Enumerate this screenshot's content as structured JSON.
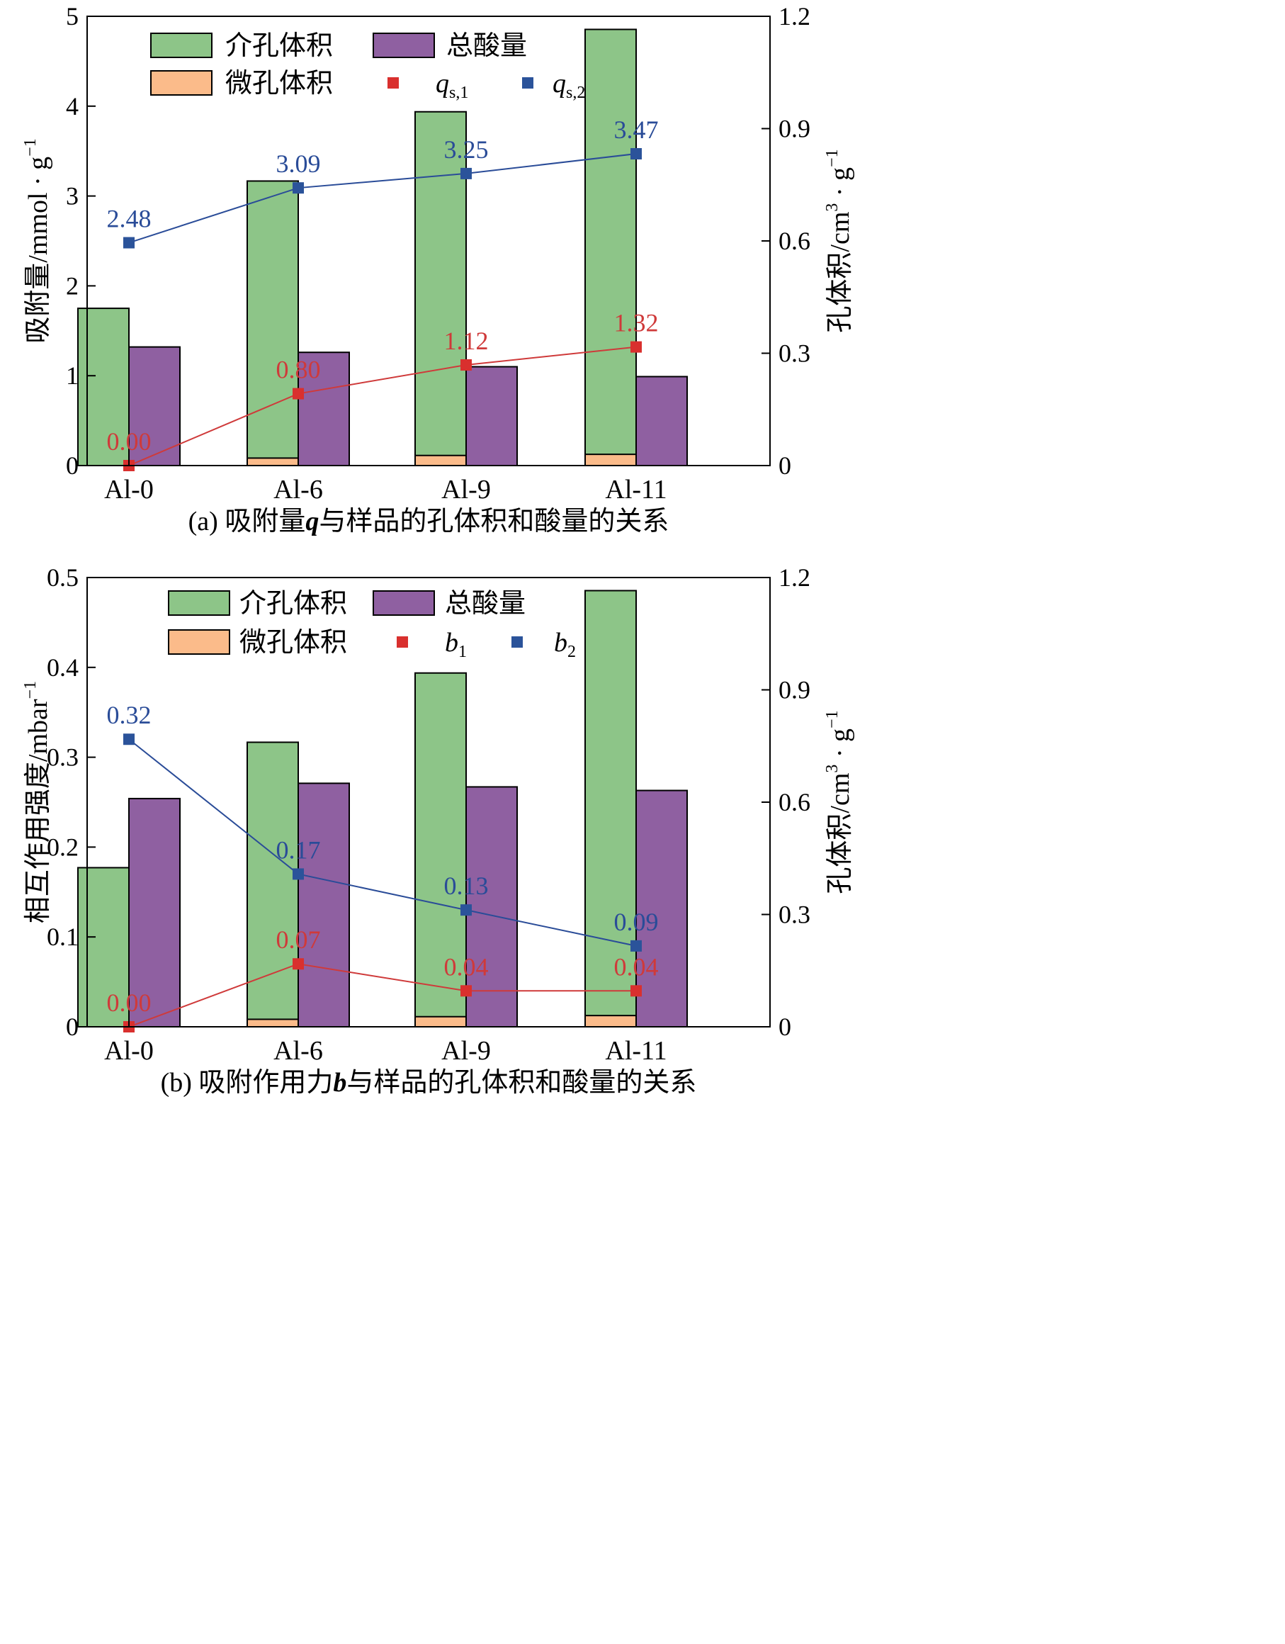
{
  "figure_labels": {
    "legend_mesopore": "介孔体积",
    "legend_acid": "总酸量",
    "legend_micropore": "微孔体积"
  },
  "colors": {
    "mesopore": "#8dc588",
    "acid": "#8f60a1",
    "micropore": "#fbbb8a",
    "series1": "#d9302e",
    "series2": "#2b539a",
    "line1": "#cf3a3a",
    "line2": "#2a4c98",
    "axis": "#000000"
  },
  "chart_data": [
    {
      "type": "bar",
      "id": "a",
      "title": "(a) 吸附量q与样品的孔体积和酸量的关系",
      "title_parts": [
        "(a) 吸附量",
        "q",
        "与样品的孔体积和酸量的关系"
      ],
      "categories": [
        "Al-0",
        "Al-6",
        "Al-9",
        "Al-11"
      ],
      "ylabel": "吸附量/mmol · g",
      "ylabel_sup": "−1",
      "ylim": [
        0,
        5
      ],
      "yticks": [
        0,
        1,
        2,
        3,
        4,
        5
      ],
      "ytick_labels": [
        "0",
        "1",
        "2",
        "3",
        "4",
        "5"
      ],
      "y2label": "孔体积/cm",
      "y2label_sup": "3",
      "y2label_tail": " · g",
      "y2label_sup2": "−1",
      "y2lim": [
        0,
        1.2
      ],
      "y2ticks": [
        0,
        0.3,
        0.6,
        0.9,
        1.2
      ],
      "y2tick_labels": [
        "0",
        "0.3",
        "0.6",
        "0.9",
        "1.2"
      ],
      "bars": [
        {
          "name": "介孔体积",
          "axis": "right",
          "values": [
            0.42,
            0.76,
            0.945,
            1.165
          ]
        },
        {
          "name": "微孔体积",
          "axis": "right",
          "values": [
            0.0,
            0.02,
            0.027,
            0.03
          ]
        },
        {
          "name": "总酸量",
          "axis": "left",
          "values": [
            1.32,
            1.26,
            1.1,
            0.99
          ]
        }
      ],
      "series": [
        {
          "name": "qs,1",
          "sym": "q",
          "sub": "s,1",
          "axis": "left",
          "values": [
            0.0,
            0.8,
            1.12,
            1.32
          ],
          "labels": [
            "0.00",
            "0.80",
            "1.12",
            "1.32"
          ]
        },
        {
          "name": "qs,2",
          "sym": "q",
          "sub": "s,2",
          "axis": "left",
          "values": [
            2.48,
            3.09,
            3.25,
            3.47
          ],
          "labels": [
            "2.48",
            "3.09",
            "3.25",
            "3.47"
          ]
        }
      ]
    },
    {
      "type": "bar",
      "id": "b",
      "title": "(b) 吸附作用力b与样品的孔体积和酸量的关系",
      "title_parts": [
        "(b) 吸附作用力",
        "b",
        "与样品的孔体积和酸量的关系"
      ],
      "categories": [
        "Al-0",
        "Al-6",
        "Al-9",
        "Al-11"
      ],
      "ylabel": "相互作用强度/mbar",
      "ylabel_sup": "−1",
      "ylim": [
        0,
        0.5
      ],
      "yticks": [
        0,
        0.1,
        0.2,
        0.3,
        0.4,
        0.5
      ],
      "ytick_labels": [
        "0",
        "0.1",
        "0.2",
        "0.3",
        "0.4",
        "0.5"
      ],
      "y2label": "孔体积/cm",
      "y2label_sup": "3",
      "y2label_tail": " · g",
      "y2label_sup2": "−1",
      "y2lim": [
        0,
        1.2
      ],
      "y2ticks": [
        0,
        0.3,
        0.6,
        0.9,
        1.2
      ],
      "y2tick_labels": [
        "0",
        "0.3",
        "0.6",
        "0.9",
        "1.2"
      ],
      "bars": [
        {
          "name": "介孔体积",
          "axis": "right",
          "values": [
            0.425,
            0.76,
            0.945,
            1.165
          ]
        },
        {
          "name": "微孔体积",
          "axis": "right",
          "values": [
            0.0,
            0.02,
            0.027,
            0.03
          ]
        },
        {
          "name": "总酸量",
          "axis": "left",
          "values": [
            0.254,
            0.271,
            0.267,
            0.263
          ]
        }
      ],
      "series": [
        {
          "name": "b1",
          "sym": "b",
          "sub": "1",
          "axis": "left",
          "values": [
            0.0,
            0.07,
            0.04,
            0.04
          ],
          "labels": [
            "0.00",
            "0.07",
            "0.04",
            "0.04"
          ]
        },
        {
          "name": "b2",
          "sym": "b",
          "sub": "2",
          "axis": "left",
          "values": [
            0.32,
            0.17,
            0.13,
            0.09
          ],
          "labels": [
            "0.32",
            "0.17",
            "0.13",
            "0.09"
          ]
        }
      ]
    }
  ]
}
